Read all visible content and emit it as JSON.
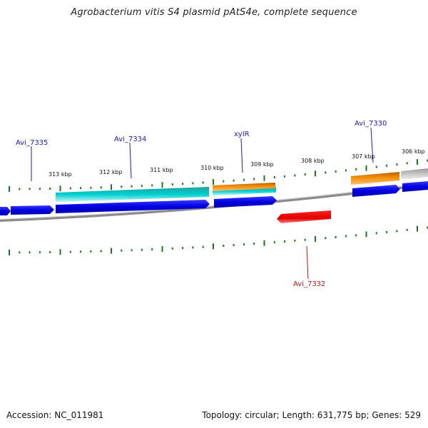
{
  "title": "Agrobacterium vitis S4 plasmid pAtS4e, complete sequence",
  "footer": {
    "accession": "Accession: NC_011981",
    "summary": "Topology: circular; Length: 631,775 bp; Genes: 529"
  },
  "tick_labels": [
    "313 kbp",
    "312 kbp",
    "311 kbp",
    "310 kbp",
    "309 kbp",
    "308 kbp",
    "307 kbp",
    "306 kbp"
  ],
  "gene_labels": {
    "avi7335": "Avi_7335",
    "avi7334": "Avi_7334",
    "xylr": "xylR",
    "avi7330": "Avi_7330",
    "avi7332": "Avi_7332"
  },
  "colors": {
    "forward_label": "#1a1acc",
    "reverse_label": "#cc1111",
    "cds": "#0000e0",
    "rna": "#00c0c0",
    "orange": "#f08a00",
    "red": "#e00000",
    "gray": "#b8b8b8",
    "tick": "#1a7a1a",
    "backbone": "#888888"
  }
}
